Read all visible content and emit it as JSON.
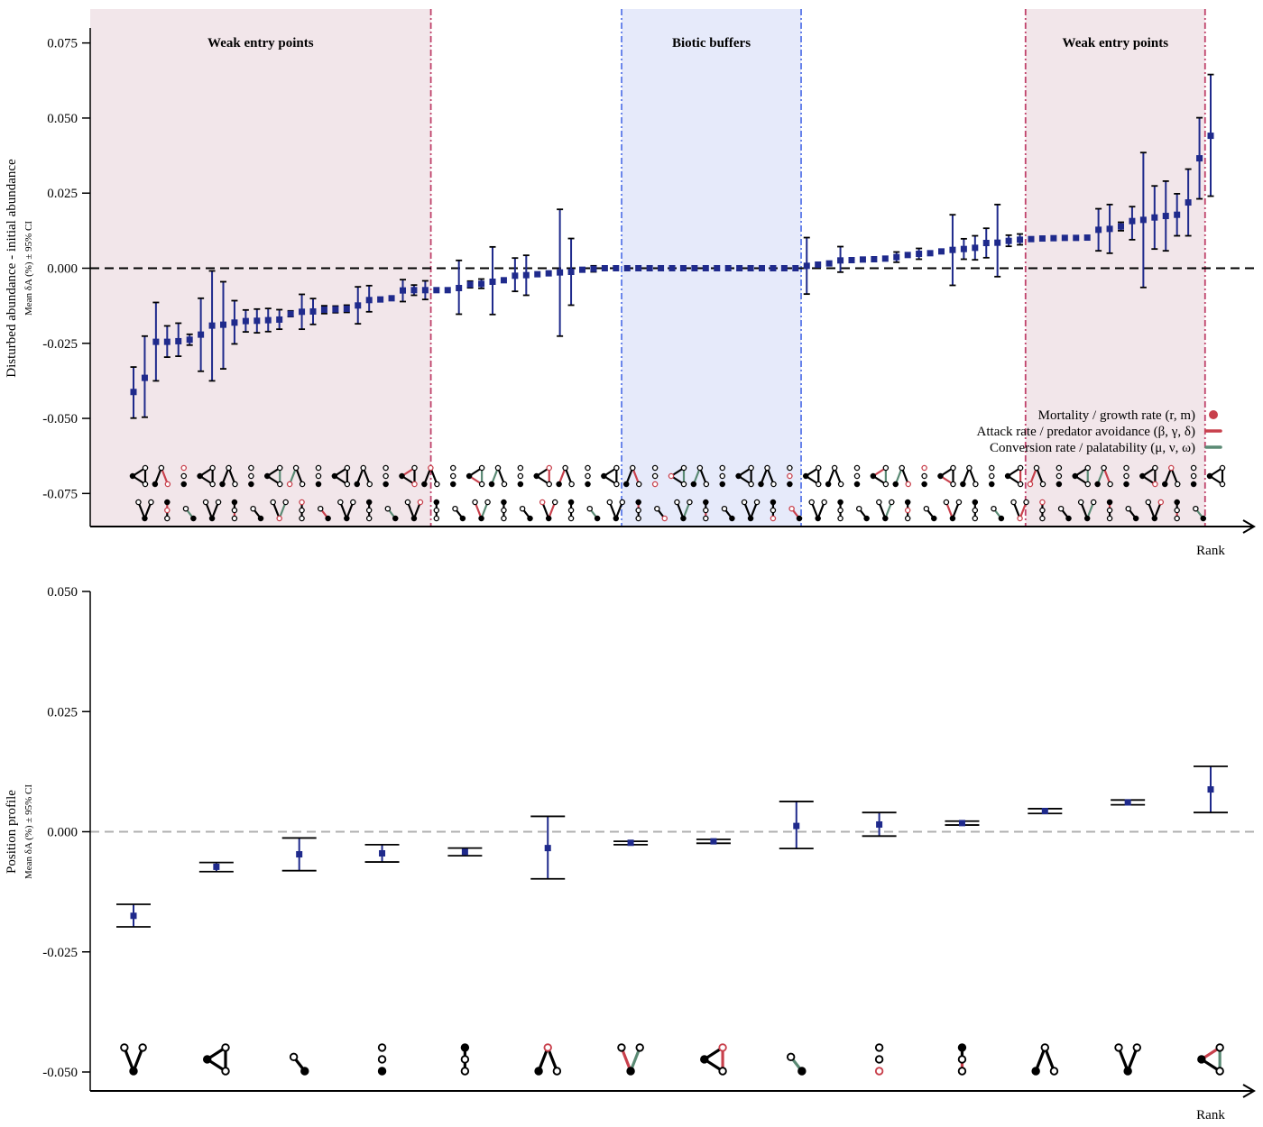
{
  "chart_data": [
    {
      "type": "scatter",
      "title": "",
      "ylabel": "Disturbed abundance - initial abundance",
      "ylabel_sub": "Mean δA (%) ± 95% CI",
      "xlabel": "Rank",
      "ylim": [
        -0.08,
        0.08
      ],
      "yticks": [
        "0.075",
        "0.050",
        "0.025",
        "0.000",
        "-0.025",
        "-0.050",
        "-0.075"
      ],
      "grid": false,
      "reference_line": 0,
      "regions": [
        {
          "label": "Weak entry points",
          "from_rank": 1,
          "to_rank": 27,
          "color": "#f2e6ea",
          "line_color": "#c0436b"
        },
        {
          "label": "Biotic buffers",
          "from_rank": 45,
          "to_rank": 60,
          "color": "#e6eafa",
          "line_color": "#5b78e8"
        },
        {
          "label": "Weak entry points",
          "from_rank": 81,
          "to_rank": 96,
          "color": "#f2e6ea",
          "line_color": "#c0436b"
        }
      ],
      "legend": {
        "placement": "lower-right",
        "entries": [
          {
            "label": "Mortality / growth rate (r, m)",
            "symbol": "dot",
            "color": "#c8404c"
          },
          {
            "label": "Attack rate / predator avoidance (β, γ, δ)",
            "symbol": "line",
            "color": "#c8404c"
          },
          {
            "label": "Conversion rate / palatability (μ, ν, ω)",
            "symbol": "line",
            "color": "#5a8a74"
          }
        ]
      },
      "series": [
        {
          "marker_color": "#1f2a8c",
          "values": [
            -0.0412,
            -0.0365,
            -0.0245,
            -0.0245,
            -0.0243,
            -0.0238,
            -0.0221,
            -0.0191,
            -0.0188,
            -0.0181,
            -0.0176,
            -0.0175,
            -0.0173,
            -0.0171,
            -0.0152,
            -0.0145,
            -0.0144,
            -0.0138,
            -0.0137,
            -0.0135,
            -0.0124,
            -0.0106,
            -0.0104,
            -0.01,
            -0.0074,
            -0.0073,
            -0.0073,
            -0.0073,
            -0.0073,
            -0.0066,
            -0.0054,
            -0.0052,
            -0.0045,
            -0.004,
            -0.0025,
            -0.0023,
            -0.002,
            -0.0017,
            -0.0014,
            -0.0012,
            -0.0005,
            -0.0002,
            0,
            0,
            0,
            0,
            0,
            0,
            0,
            0,
            0,
            0,
            0,
            0,
            0,
            0,
            0,
            0,
            0,
            0,
            0.0008,
            0.0012,
            0.0016,
            0.0026,
            0.0027,
            0.0029,
            0.003,
            0.0032,
            0.0037,
            0.0044,
            0.0048,
            0.005,
            0.0056,
            0.0061,
            0.0064,
            0.0068,
            0.0084,
            0.0085,
            0.0091,
            0.0095,
            0.0097,
            0.0099,
            0.01,
            0.0101,
            0.0101,
            0.0102,
            0.0128,
            0.0131,
            0.0139,
            0.0157,
            0.0161,
            0.0169,
            0.0174,
            0.0178,
            0.0219,
            0.0366,
            0.0441
          ],
          "ci_low": [
            -0.0499,
            -0.0496,
            -0.0375,
            -0.0296,
            -0.0293,
            -0.0256,
            -0.0343,
            -0.0375,
            -0.0335,
            -0.0252,
            -0.0212,
            -0.0215,
            -0.0211,
            -0.0203,
            -0.0161,
            -0.0203,
            -0.0187,
            -0.0151,
            -0.0148,
            -0.0147,
            -0.0185,
            -0.0145,
            -0.0104,
            -0.01,
            -0.0111,
            -0.009,
            -0.0104,
            -0.0073,
            -0.0073,
            -0.0153,
            -0.0065,
            -0.0067,
            -0.0154,
            -0.004,
            -0.0077,
            -0.009,
            -0.002,
            -0.0017,
            -0.0226,
            -0.0123,
            -0.0005,
            -0.0012,
            0,
            0,
            0,
            0,
            0,
            0,
            0,
            0,
            0,
            0,
            0,
            0,
            0,
            0,
            0,
            0,
            0,
            0,
            -0.0086,
            0.0012,
            0.0016,
            -0.0013,
            0.0027,
            0.0029,
            0.003,
            0.0032,
            0.002,
            0.0044,
            0.003,
            0.005,
            0.0056,
            -0.0057,
            0.003,
            0.0028,
            0.0035,
            -0.0028,
            0.0073,
            0.0078,
            0.0097,
            0.0099,
            0.01,
            0.0101,
            0.0101,
            0.0102,
            0.0058,
            0.005,
            0.0125,
            0.0095,
            -0.0064,
            0.0064,
            0.0058,
            0.0108,
            0.0108,
            0.0231,
            0.024
          ],
          "ci_high": [
            -0.0329,
            -0.0226,
            -0.0114,
            -0.0192,
            -0.0183,
            -0.022,
            -0.01,
            -0.0009,
            -0.0045,
            -0.0108,
            -0.0139,
            -0.0136,
            -0.0134,
            -0.0138,
            -0.0142,
            -0.0087,
            -0.0101,
            -0.0125,
            -0.0126,
            -0.0123,
            -0.0062,
            -0.0058,
            -0.0104,
            -0.01,
            -0.0038,
            -0.0056,
            -0.0042,
            -0.0073,
            -0.0073,
            0.0026,
            -0.0043,
            -0.0036,
            0.0071,
            -0.004,
            0.0034,
            0.0043,
            -0.002,
            -0.0017,
            0.0196,
            0.0099,
            -0.0005,
            0.0008,
            0,
            0,
            0,
            0,
            0,
            0,
            0,
            0,
            0,
            0,
            0,
            0,
            0,
            0,
            0,
            0,
            0,
            0,
            0.0102,
            0.0012,
            0.0016,
            0.0072,
            0.0027,
            0.0029,
            0.003,
            0.0032,
            0.0054,
            0.0044,
            0.0066,
            0.005,
            0.0056,
            0.0178,
            0.0098,
            0.0108,
            0.0133,
            0.0212,
            0.011,
            0.0114,
            0.0097,
            0.0099,
            0.01,
            0.0101,
            0.0101,
            0.0102,
            0.0198,
            0.0212,
            0.0153,
            0.0205,
            0.0385,
            0.0274,
            0.029,
            0.0248,
            0.033,
            0.0501,
            0.0645
          ]
        }
      ]
    },
    {
      "type": "scatter",
      "title": "",
      "ylabel": "Position profile",
      "ylabel_sub": "Mean δA (%) ± 95% CI",
      "xlabel": "Rank",
      "ylim": [
        -0.05,
        0.05
      ],
      "yticks": [
        "0.050",
        "0.025",
        "0.000",
        "-0.025",
        "-0.050"
      ],
      "grid": false,
      "reference_line": 0,
      "series": [
        {
          "marker_color": "#1f2a8c",
          "values": [
            -0.0175,
            -0.0073,
            -0.0047,
            -0.0045,
            -0.0042,
            -0.0034,
            -0.0023,
            -0.002,
            0.0012,
            0.0015,
            0.0018,
            0.0043,
            0.0061,
            0.0088
          ],
          "ci_low": [
            -0.0198,
            -0.0083,
            -0.0081,
            -0.0063,
            -0.005,
            -0.0098,
            -0.0027,
            -0.0024,
            -0.0035,
            -0.0009,
            0.0014,
            0.0038,
            0.0056,
            0.004
          ],
          "ci_high": [
            -0.0151,
            -0.0064,
            -0.0013,
            -0.0027,
            -0.0034,
            0.0032,
            -0.002,
            -0.0016,
            0.0063,
            0.004,
            0.0022,
            0.0048,
            0.0066,
            0.0136
          ]
        }
      ]
    }
  ]
}
